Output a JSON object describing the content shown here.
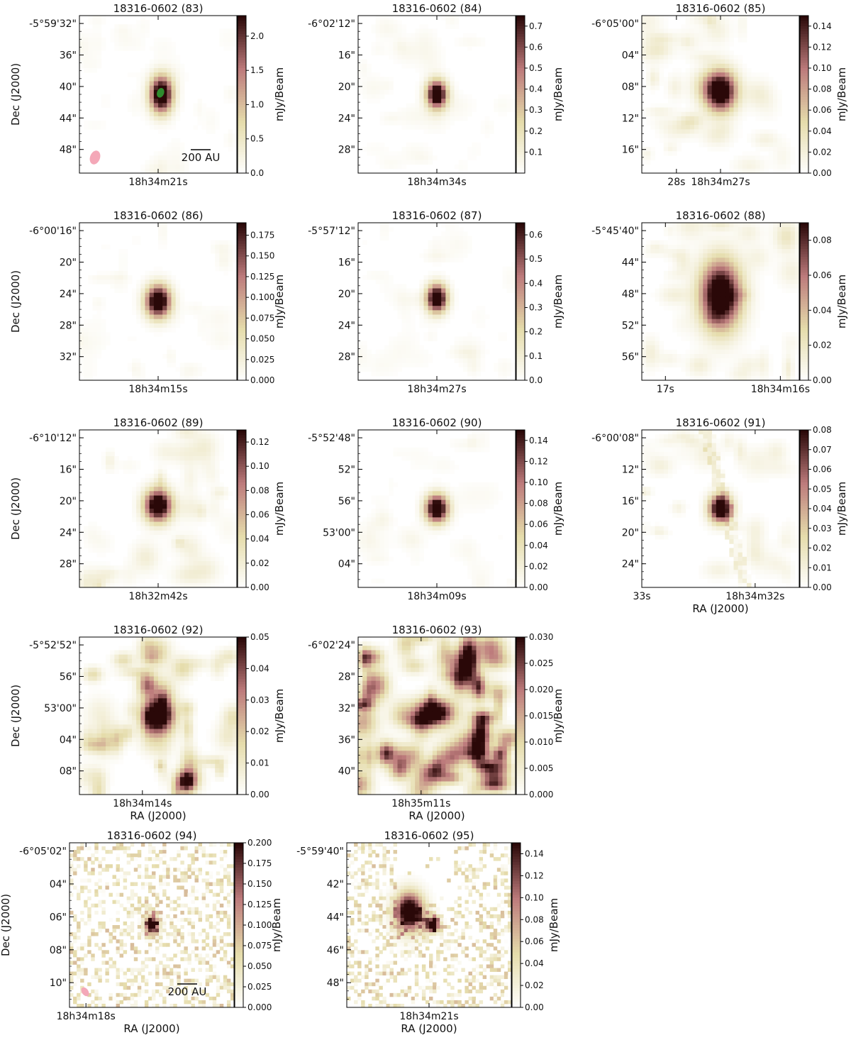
{
  "figure": {
    "axis_labels": {
      "dec": "Dec (J2000)",
      "ra": "RA (J2000)",
      "cbar": "mJy/Beam"
    },
    "colors": {
      "cmap": [
        "#ffffff",
        "#e5dcab",
        "#bd7b7c",
        "#2a0808"
      ],
      "source_marker": "#2e8b2e",
      "beam": "#f4a8b8",
      "frame": "#000000"
    }
  },
  "chart_data": [
    {
      "type": "heatmap",
      "title": "18316-0602 (83)",
      "dec_ticks": [
        "-5°59'32\"",
        "36\"",
        "40\"",
        "44\"",
        "48\""
      ],
      "ra_ticks": [
        "18h34m21s"
      ],
      "cbar_ticks": [
        "0.0",
        "0.5",
        "1.0",
        "1.5",
        "2.0"
      ],
      "cbar_range": [
        0,
        2.3
      ],
      "ylabel": "Dec (J2000)",
      "xlabel": "",
      "cbar_label": "mJy/Beam",
      "scalebar": "200 AU",
      "beam": true,
      "marker": true,
      "blobs": [
        [
          0.52,
          0.5,
          0.05,
          0.08,
          1.0
        ]
      ],
      "noise": "low"
    },
    {
      "type": "heatmap",
      "title": "18316-0602 (84)",
      "dec_ticks": [
        "-6°02'12\"",
        "16\"",
        "20\"",
        "24\"",
        "28\""
      ],
      "ra_ticks": [
        "18h34m34s"
      ],
      "cbar_ticks": [
        "0.1",
        "0.2",
        "0.3",
        "0.4",
        "0.5",
        "0.6",
        "0.7"
      ],
      "cbar_range": [
        0,
        0.75
      ],
      "ylabel": "",
      "xlabel": "",
      "cbar_label": "mJy/Beam",
      "blobs": [
        [
          0.5,
          0.5,
          0.045,
          0.06,
          1.0
        ]
      ],
      "noise": "low"
    },
    {
      "type": "heatmap",
      "title": "18316-0602 (85)",
      "dec_ticks": [
        "-6°05'00\"",
        "04\"",
        "08\"",
        "12\"",
        "16\""
      ],
      "ra_ticks": [
        "28s",
        "18h34m27s"
      ],
      "cbar_ticks": [
        "0.00",
        "0.02",
        "0.04",
        "0.06",
        "0.08",
        "0.10",
        "0.12",
        "0.14"
      ],
      "cbar_range": [
        0,
        0.15
      ],
      "ylabel": "",
      "xlabel": "",
      "cbar_label": "mJy/Beam",
      "blobs": [
        [
          0.5,
          0.48,
          0.07,
          0.09,
          1.0
        ]
      ],
      "noise": "med"
    },
    {
      "type": "heatmap",
      "title": "18316-0602 (86)",
      "dec_ticks": [
        "-6°00'16\"",
        "20\"",
        "24\"",
        "28\"",
        "32\""
      ],
      "ra_ticks": [
        "18h34m15s"
      ],
      "cbar_ticks": [
        "0.000",
        "0.025",
        "0.050",
        "0.075",
        "0.100",
        "0.125",
        "0.150",
        "0.175"
      ],
      "cbar_range": [
        0,
        0.19
      ],
      "ylabel": "Dec (J2000)",
      "xlabel": "",
      "cbar_label": "mJy/Beam",
      "blobs": [
        [
          0.5,
          0.5,
          0.055,
          0.07,
          1.0
        ]
      ],
      "noise": "low"
    },
    {
      "type": "heatmap",
      "title": "18316-0602 (87)",
      "dec_ticks": [
        "-5°57'12\"",
        "16\"",
        "20\"",
        "24\"",
        "28\""
      ],
      "ra_ticks": [
        "18h34m27s"
      ],
      "cbar_ticks": [
        "0.0",
        "0.1",
        "0.2",
        "0.3",
        "0.4",
        "0.5",
        "0.6"
      ],
      "cbar_range": [
        0,
        0.65
      ],
      "ylabel": "",
      "xlabel": "",
      "cbar_label": "mJy/Beam",
      "blobs": [
        [
          0.5,
          0.48,
          0.045,
          0.06,
          1.0
        ]
      ],
      "noise": "low"
    },
    {
      "type": "heatmap",
      "title": "18316-0602 (88)",
      "dec_ticks": [
        "-5°45'40\"",
        "44\"",
        "48\"",
        "52\"",
        "56\""
      ],
      "ra_ticks": [
        "17s",
        "18h34m16s"
      ],
      "cbar_ticks": [
        "0.00",
        "0.02",
        "0.04",
        "0.06",
        "0.08"
      ],
      "cbar_range": [
        0,
        0.09
      ],
      "ylabel": "",
      "xlabel": "",
      "cbar_label": "mJy/Beam",
      "blobs": [
        [
          0.5,
          0.46,
          0.09,
          0.15,
          1.0
        ]
      ],
      "noise": "med"
    },
    {
      "type": "heatmap",
      "title": "18316-0602 (89)",
      "dec_ticks": [
        "-6°10'12\"",
        "16\"",
        "20\"",
        "24\"",
        "28\""
      ],
      "ra_ticks": [
        "18h32m42s"
      ],
      "cbar_ticks": [
        "0.00",
        "0.02",
        "0.04",
        "0.06",
        "0.08",
        "0.10",
        "0.12"
      ],
      "cbar_range": [
        0,
        0.13
      ],
      "ylabel": "Dec (J2000)",
      "xlabel": "",
      "cbar_label": "mJy/Beam",
      "blobs": [
        [
          0.5,
          0.48,
          0.06,
          0.07,
          1.0
        ]
      ],
      "noise": "med"
    },
    {
      "type": "heatmap",
      "title": "18316-0602 (90)",
      "dec_ticks": [
        "-5°52'48\"",
        "52\"",
        "56\"",
        "53'00\"",
        "04\""
      ],
      "ra_ticks": [
        "18h34m09s"
      ],
      "cbar_ticks": [
        "0.00",
        "0.02",
        "0.04",
        "0.06",
        "0.08",
        "0.10",
        "0.12",
        "0.14"
      ],
      "cbar_range": [
        0,
        0.15
      ],
      "ylabel": "",
      "xlabel": "",
      "cbar_label": "mJy/Beam",
      "blobs": [
        [
          0.5,
          0.5,
          0.05,
          0.06,
          1.0
        ]
      ],
      "noise": "low"
    },
    {
      "type": "heatmap",
      "title": "18316-0602 (91)",
      "dec_ticks": [
        "-6°00'08\"",
        "12\"",
        "16\"",
        "20\"",
        "24\""
      ],
      "ra_ticks": [
        "33s",
        "18h34m32s"
      ],
      "cbar_ticks": [
        "0.00",
        "0.01",
        "0.02",
        "0.03",
        "0.04",
        "0.05",
        "0.06",
        "0.07",
        "0.08"
      ],
      "cbar_range": [
        0,
        0.08
      ],
      "ylabel": "",
      "xlabel": "RA (J2000)",
      "cbar_label": "mJy/Beam",
      "blobs": [
        [
          0.5,
          0.5,
          0.05,
          0.06,
          1.0
        ]
      ],
      "noise": "filament"
    },
    {
      "type": "heatmap",
      "title": "18316-0602 (92)",
      "dec_ticks": [
        "-5°52'52\"",
        "56\"",
        "53'00\"",
        "04\"",
        "08\""
      ],
      "ra_ticks": [
        "18h34m14s"
      ],
      "cbar_ticks": [
        "0.00",
        "0.01",
        "0.02",
        "0.03",
        "0.04",
        "0.05"
      ],
      "cbar_range": [
        0,
        0.05
      ],
      "ylabel": "Dec (J2000)",
      "xlabel": "RA (J2000)",
      "cbar_label": "mJy/Beam",
      "blobs": [
        [
          0.5,
          0.5,
          0.07,
          0.09,
          1.0
        ],
        [
          0.68,
          0.92,
          0.04,
          0.05,
          0.7
        ],
        [
          0.43,
          0.3,
          0.04,
          0.05,
          0.5
        ]
      ],
      "noise": "high"
    },
    {
      "type": "heatmap",
      "title": "18316-0602 (93)",
      "dec_ticks": [
        "-6°02'24\"",
        "28\"",
        "32\"",
        "36\"",
        "40\""
      ],
      "ra_ticks": [
        "18h35m11s"
      ],
      "cbar_ticks": [
        "0.000",
        "0.005",
        "0.010",
        "0.015",
        "0.020",
        "0.025",
        "0.030"
      ],
      "cbar_range": [
        0,
        0.03
      ],
      "ylabel": "",
      "xlabel": "RA (J2000)",
      "cbar_label": "mJy/Beam",
      "blobs": [
        [
          0.48,
          0.48,
          0.09,
          0.06,
          1.0
        ],
        [
          0.7,
          0.14,
          0.04,
          0.1,
          0.9
        ],
        [
          0.78,
          0.62,
          0.04,
          0.08,
          0.8
        ],
        [
          0.18,
          0.74,
          0.04,
          0.05,
          0.7
        ]
      ],
      "noise": "heavy"
    },
    {
      "type": "heatmap",
      "title": "18316-0602 (94)",
      "dec_ticks": [
        "-6°05'02\"",
        "04\"",
        "06\"",
        "08\"",
        "10\""
      ],
      "ra_ticks": [
        "18h34m18s"
      ],
      "cbar_ticks": [
        "0.000",
        "0.025",
        "0.050",
        "0.075",
        "0.100",
        "0.125",
        "0.150",
        "0.175",
        "0.200"
      ],
      "cbar_range": [
        0,
        0.2
      ],
      "ylabel": "Dec (J2000)",
      "xlabel": "RA (J2000)",
      "cbar_label": "mJy/Beam",
      "scalebar": "200 AU",
      "beam": true,
      "blobs": [
        [
          0.5,
          0.5,
          0.03,
          0.04,
          0.9
        ]
      ],
      "noise": "pixel"
    },
    {
      "type": "heatmap",
      "title": "18316-0602 (95)",
      "dec_ticks": [
        "-5°59'40\"",
        "42\"",
        "44\"",
        "46\"",
        "48\""
      ],
      "ra_ticks": [
        "18h34m21s"
      ],
      "cbar_ticks": [
        "0.00",
        "0.02",
        "0.04",
        "0.06",
        "0.08",
        "0.10",
        "0.12",
        "0.14"
      ],
      "cbar_range": [
        0,
        0.15
      ],
      "ylabel": "",
      "xlabel": "RA (J2000)",
      "cbar_label": "mJy/Beam",
      "blobs": [
        [
          0.38,
          0.42,
          0.06,
          0.08,
          1.0
        ],
        [
          0.52,
          0.5,
          0.03,
          0.03,
          1.0
        ]
      ],
      "noise": "pixel"
    }
  ]
}
